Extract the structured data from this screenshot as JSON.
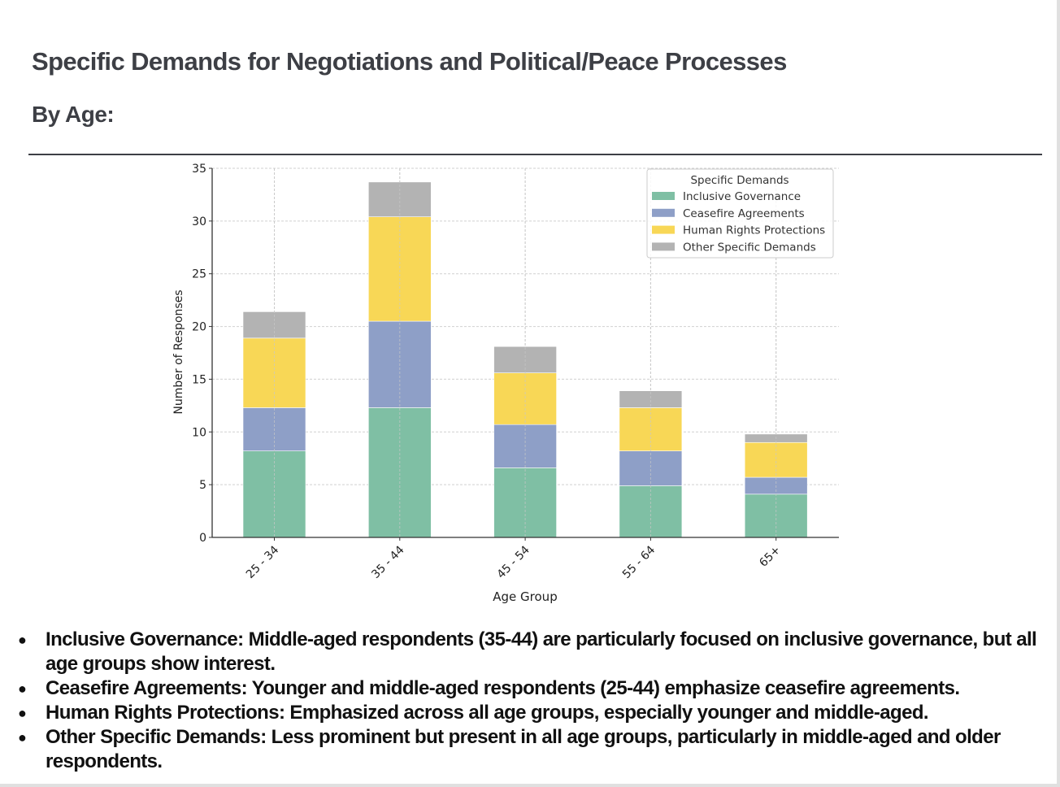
{
  "page": {
    "title": "Specific Demands for Negotiations and Political/Peace Processes",
    "subtitle": "By Age:"
  },
  "chart_data": {
    "type": "bar",
    "stacked": true,
    "title": "",
    "xlabel": "Age Group",
    "ylabel": "Number of Responses",
    "ylim": [
      0,
      35
    ],
    "yticks": [
      0,
      5,
      10,
      15,
      20,
      25,
      30,
      35
    ],
    "grid": true,
    "legend_title": "Specific Demands",
    "legend_position": "top-right",
    "categories": [
      "25 - 34",
      "35 - 44",
      "45 - 54",
      "55 - 64",
      "65+"
    ],
    "series": [
      {
        "name": "Inclusive Governance",
        "color": "#7fbfa4",
        "values": [
          8.2,
          12.3,
          6.6,
          4.9,
          4.1
        ]
      },
      {
        "name": "Ceasefire Agreements",
        "color": "#8e9fc7",
        "values": [
          4.1,
          8.2,
          4.1,
          3.3,
          1.6
        ]
      },
      {
        "name": "Human Rights Protections",
        "color": "#f8d756",
        "values": [
          6.6,
          9.9,
          4.9,
          4.1,
          3.3
        ]
      },
      {
        "name": "Other Specific Demands",
        "color": "#b3b3b3",
        "values": [
          2.5,
          3.3,
          2.5,
          1.6,
          0.8
        ]
      }
    ]
  },
  "notes": [
    "Inclusive Governance: Middle-aged respondents (35-44) are particularly focused on inclusive governance, but all age groups show interest.",
    "Ceasefire Agreements: Younger and middle-aged respondents (25-44) emphasize ceasefire agreements.",
    "Human Rights Protections: Emphasized across all age groups, especially younger and middle-aged.",
    "Other Specific Demands: Less prominent but present in all age groups, particularly in middle-aged and older respondents."
  ]
}
